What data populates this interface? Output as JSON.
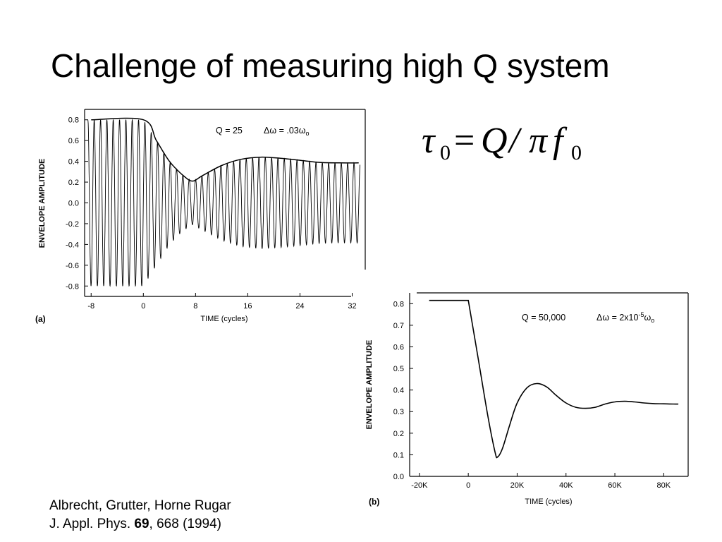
{
  "slide": {
    "title": "Challenge of measuring high Q system"
  },
  "formula": {
    "lhs_symbol": "τ",
    "lhs_subscript": "0",
    "equals": "=",
    "rhs_numerator": "Q",
    "slash": "/",
    "rhs_pi": "π",
    "rhs_f": "f",
    "rhs_subscript": "0"
  },
  "citation": {
    "authors": "Albrecht, Grutter, Horne Rugar",
    "journal": "J. Appl. Phys.",
    "volume": "69",
    "pages_year": ", 668 (1994)"
  },
  "chart_data": [
    {
      "type": "line",
      "panel": "(a)",
      "xlabel": "TIME (cycles)",
      "ylabel": "ENVELOPE AMPLITUDE",
      "annotation_q": "Q = 25",
      "annotation_dw": "Δω = .03ω",
      "annotation_dw_sub": "o",
      "xlim": [
        -9,
        34
      ],
      "ylim": [
        -0.9,
        0.9
      ],
      "x_ticks": [
        -8,
        0,
        8,
        16,
        24,
        32
      ],
      "x_tick_labels": [
        "-8",
        "0",
        "8",
        "16",
        "24",
        "32"
      ],
      "y_ticks": [
        0.8,
        0.6,
        0.4,
        0.2,
        0.0,
        -0.2,
        -0.4,
        -0.6,
        -0.8
      ],
      "y_tick_labels": [
        "0.8",
        "0.6",
        "0.4",
        "0.2",
        "0.0",
        "-0.2",
        "-0.4",
        "-0.6",
        "-0.8"
      ],
      "series": [
        {
          "x": [
            -8,
            0,
            2,
            4,
            6,
            7.5,
            9,
            12,
            15,
            18,
            21,
            24,
            27,
            30,
            33
          ],
          "y": [
            0.8,
            0.8,
            0.6,
            0.4,
            0.27,
            0.21,
            0.26,
            0.36,
            0.42,
            0.44,
            0.43,
            0.41,
            0.39,
            0.385,
            0.385
          ]
        }
      ],
      "oscillation_cycles_per_unit": 1.03,
      "grid": false
    },
    {
      "type": "line",
      "panel": "(b)",
      "xlabel": "TIME (cycles)",
      "ylabel": "ENVELOPE AMPLITUDE",
      "annotation_q": "Q = 50,000",
      "annotation_dw": "Δω = 2x10",
      "annotation_dw_exp": "-5",
      "annotation_dw_tail": "ω",
      "annotation_dw_sub": "o",
      "xlim": [
        -24000,
        90000
      ],
      "ylim": [
        0,
        0.85
      ],
      "x_ticks": [
        -20000,
        0,
        20000,
        40000,
        60000,
        80000
      ],
      "x_tick_labels": [
        "-20K",
        "0",
        "20K",
        "40K",
        "60K",
        "80K"
      ],
      "y_ticks": [
        0.8,
        0.7,
        0.6,
        0.5,
        0.4,
        0.3,
        0.2,
        0.1,
        0.0
      ],
      "y_tick_labels": [
        "0.8",
        "0.7",
        "0.6",
        "0.5",
        "0.4",
        "0.3",
        "0.2",
        "0.1",
        "0.0"
      ],
      "series": [
        {
          "x": [
            -16000,
            0,
            4000,
            8000,
            11000,
            12000,
            14000,
            17000,
            20000,
            24000,
            28000,
            32000,
            36000,
            40000,
            44000,
            48000,
            52000,
            56000,
            60000,
            64000,
            68000,
            72000,
            76000,
            80000,
            84000,
            86000
          ],
          "y": [
            0.815,
            0.815,
            0.55,
            0.28,
            0.11,
            0.09,
            0.13,
            0.24,
            0.34,
            0.41,
            0.43,
            0.415,
            0.375,
            0.34,
            0.32,
            0.315,
            0.32,
            0.335,
            0.345,
            0.348,
            0.345,
            0.34,
            0.337,
            0.336,
            0.335,
            0.335
          ]
        }
      ],
      "grid": false
    }
  ]
}
